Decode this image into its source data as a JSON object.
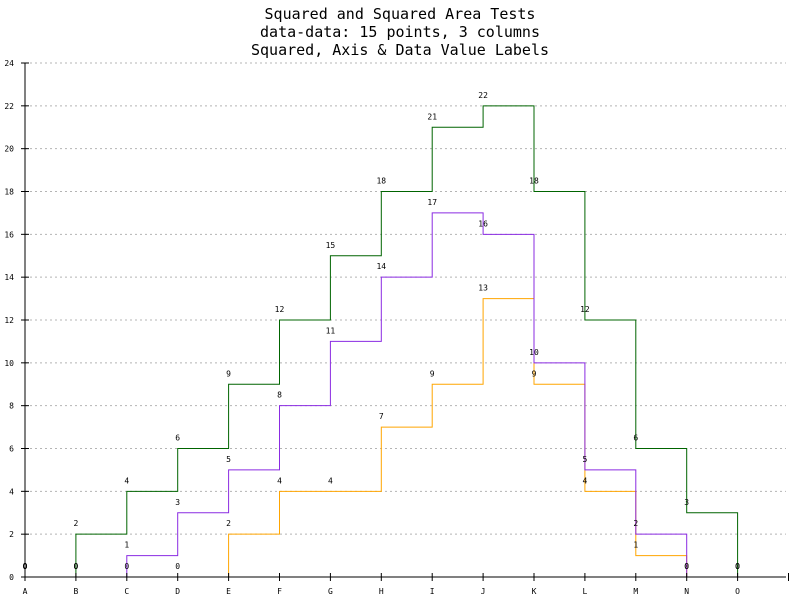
{
  "chart_data": {
    "type": "line",
    "style": "stepped",
    "title_lines": [
      "Squared and Squared Area Tests",
      "data-data: 15 points, 3 columns",
      "Squared, Axis & Data Value Labels"
    ],
    "categories": [
      "A",
      "B",
      "C",
      "D",
      "E",
      "F",
      "G",
      "H",
      "I",
      "J",
      "K",
      "L",
      "M",
      "N",
      "O"
    ],
    "ylim": [
      0,
      24
    ],
    "yticks": [
      0,
      2,
      4,
      6,
      8,
      10,
      12,
      14,
      16,
      18,
      20,
      22,
      24
    ],
    "grid": true,
    "series": [
      {
        "color": "#ffa500",
        "values": [
          0,
          0,
          0,
          0,
          2,
          4,
          4,
          7,
          9,
          13,
          9,
          4,
          1,
          0,
          0
        ]
      },
      {
        "color": "#8a2be2",
        "values": [
          0,
          0,
          1,
          3,
          5,
          8,
          11,
          14,
          17,
          16,
          10,
          5,
          2,
          0,
          0
        ]
      },
      {
        "color": "#006400",
        "values": [
          0,
          2,
          4,
          6,
          9,
          12,
          15,
          18,
          21,
          22,
          18,
          12,
          6,
          3,
          0
        ]
      }
    ]
  }
}
